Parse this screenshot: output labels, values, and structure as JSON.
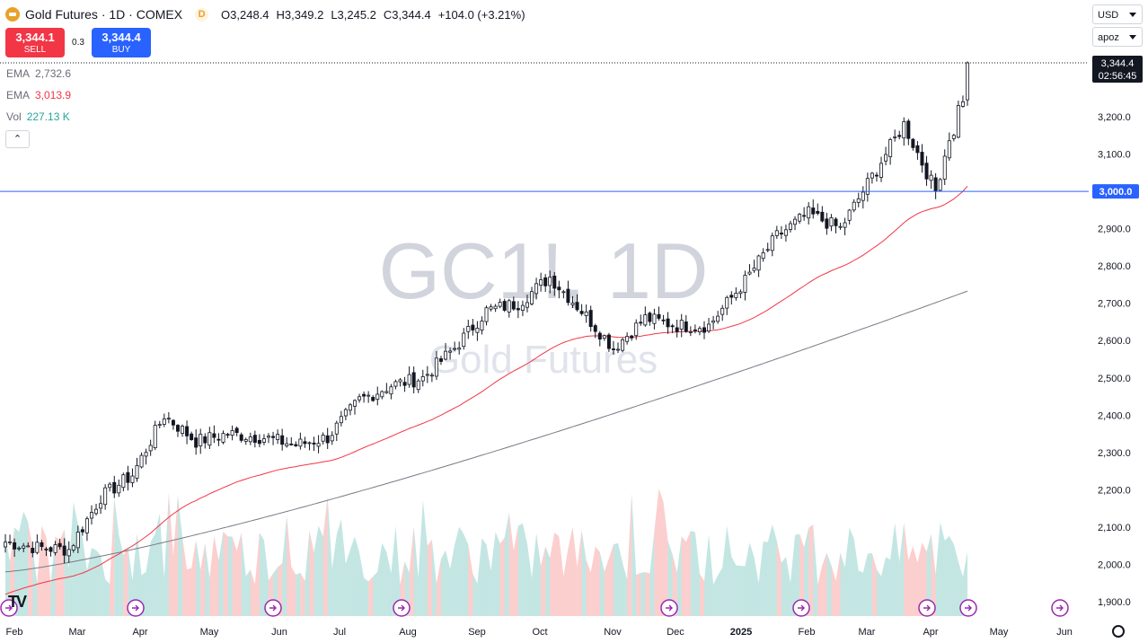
{
  "header": {
    "symbol_title": "Gold Futures · 1D · COMEX",
    "badge": "D",
    "open": "O3,248.4",
    "high": "H3,349.2",
    "low": "L3,245.2",
    "close": "C3,344.4",
    "change": "+104.0 (+3.21%)"
  },
  "trade": {
    "sell_price": "3,344.1",
    "sell_label": "SELL",
    "spread": "0.3",
    "buy_price": "3,344.4",
    "buy_label": "BUY"
  },
  "indicators": [
    {
      "name": "EMA",
      "value": "2,732.6",
      "color": "#6a6d78"
    },
    {
      "name": "EMA",
      "value": "3,013.9",
      "color": "#f23645"
    },
    {
      "name": "Vol",
      "value": "227.13 K",
      "color": "#26a69a"
    }
  ],
  "right_controls": {
    "currency": "USD",
    "scale": "apoz"
  },
  "collapse_glyph": "⌃",
  "logo_text": "TV",
  "chart_data": {
    "type": "candlestick",
    "watermark_symbol": "GC1!, 1D",
    "watermark_name": "Gold Futures",
    "x": [
      "Feb",
      "Mar",
      "Apr",
      "May",
      "Jun",
      "Jul",
      "Aug",
      "Sep",
      "Oct",
      "Nov",
      "Dec",
      "2025",
      "Feb",
      "Mar",
      "Apr",
      "May",
      "Jun"
    ],
    "y_ticks": [
      "3,200.0",
      "3,100.0",
      "3,000.0",
      "2,900.0",
      "2,800.0",
      "2,700.0",
      "2,600.0",
      "2,500.0",
      "2,400.0",
      "2,300.0",
      "2,200.0",
      "2,100.0",
      "2,000.0",
      "1,900.0"
    ],
    "ylim": [
      1880,
      3390
    ],
    "price_keypoints": [
      [
        "Feb",
        2060
      ],
      [
        "Feb",
        2045
      ],
      [
        "Mar",
        2040
      ],
      [
        "Mar",
        2180
      ],
      [
        "Apr",
        2240
      ],
      [
        "Apr",
        2400
      ],
      [
        "May",
        2330
      ],
      [
        "May",
        2350
      ],
      [
        "Jun",
        2340
      ],
      [
        "Jun",
        2320
      ],
      [
        "Jul",
        2340
      ],
      [
        "Jul",
        2440
      ],
      [
        "Aug",
        2480
      ],
      [
        "Aug",
        2500
      ],
      [
        "Sep",
        2580
      ],
      [
        "Sep",
        2680
      ],
      [
        "Oct",
        2700
      ],
      [
        "Oct",
        2770
      ],
      [
        "Nov",
        2680
      ],
      [
        "Nov",
        2580
      ],
      [
        "Dec",
        2660
      ],
      [
        "Dec",
        2640
      ],
      [
        "2025",
        2640
      ],
      [
        "2025",
        2760
      ],
      [
        "Feb",
        2880
      ],
      [
        "Feb",
        2940
      ],
      [
        "Mar",
        2900
      ],
      [
        "Mar",
        3040
      ],
      [
        "Apr",
        3180
      ],
      [
        "Apr",
        3000
      ],
      [
        "Apr",
        3344.4
      ]
    ],
    "ema_fast": {
      "name": "EMA",
      "last": 3013.9,
      "color": "#f23645"
    },
    "ema_slow": {
      "name": "EMA",
      "last": 2732.6,
      "color": "#787b86"
    },
    "volume": {
      "name": "Vol",
      "last": "227.13 K"
    },
    "horizontal_line": {
      "value": 3000.0,
      "label": "3,000.0"
    },
    "last_price": {
      "value": 3344.4,
      "label": "3,344.4",
      "countdown": "02:56:45"
    },
    "colors": {
      "up": "#26a69a",
      "down": "#ef5350",
      "candle": "#131722",
      "hline": "#2962ff"
    }
  }
}
